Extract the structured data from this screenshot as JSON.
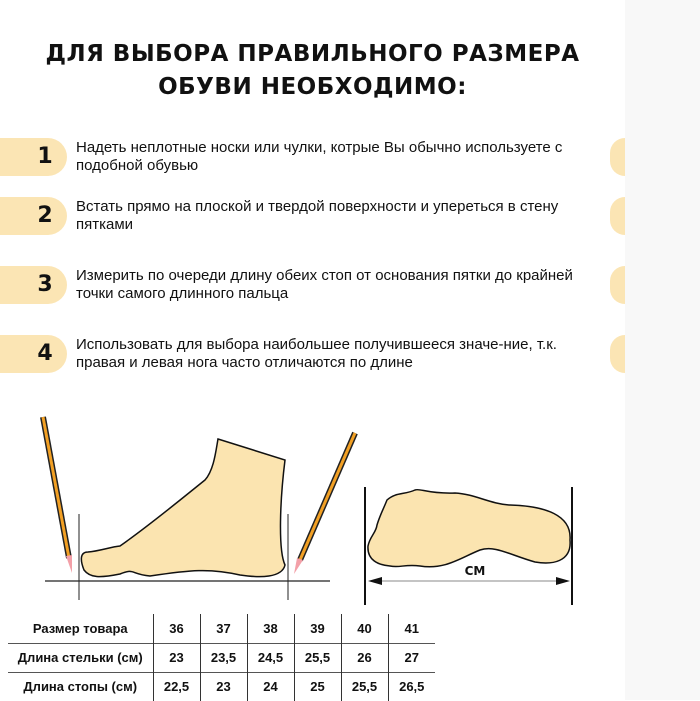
{
  "title": {
    "line1_pre": "ДЛЯ ВЫБОРА ",
    "line1_bold": "ПРАВИЛЬНОГО",
    "line1_post": " РАЗМЕРА",
    "line2": "ОБУВИ НЕОБХОДИМО:"
  },
  "steps": [
    {
      "num": "1",
      "text": "Надеть неплотные носки или чулки, котрые Вы обычно используете с подобной обувью"
    },
    {
      "num": "2",
      "text": "Встать прямо на плоской и твердой поверхности и упереться в стену пятками"
    },
    {
      "num": "3",
      "text": "Измерить по очереди длину обеих стоп от основания пятки до крайней точки самого длинного пальца"
    },
    {
      "num": "4",
      "text": "Использовать для выбора наибольшее получившееся значе-ние, т.к. правая и левая нога часто отличаются по длине"
    }
  ],
  "diagram": {
    "unit_label": "СМ"
  },
  "colors": {
    "accent": "#fbe5b4",
    "foot": "#fbe4b0"
  },
  "table": {
    "rows": [
      {
        "label": "Размер товара",
        "values": [
          "36",
          "37",
          "38",
          "39",
          "40",
          "41"
        ]
      },
      {
        "label": "Длина стельки (см)",
        "values": [
          "23",
          "23,5",
          "24,5",
          "25,5",
          "26",
          "27"
        ]
      },
      {
        "label": "Длина стопы (см)",
        "values": [
          "22,5",
          "23",
          "24",
          "25",
          "25,5",
          "26,5"
        ]
      }
    ]
  }
}
